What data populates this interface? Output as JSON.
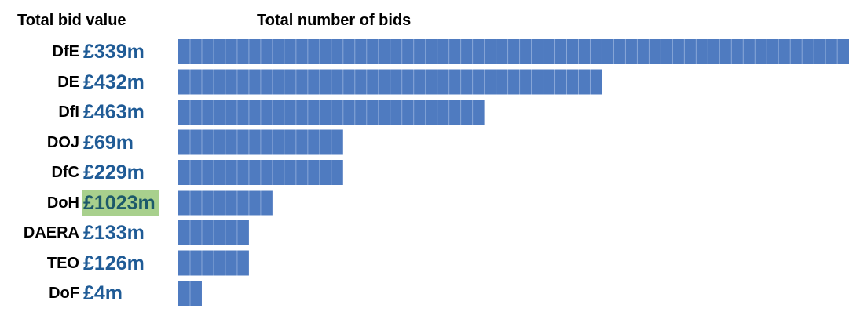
{
  "headers": {
    "value": "Total bid value",
    "count": "Total number of bids"
  },
  "colors": {
    "bar": "#4f7bc0",
    "bar_divider": "#8aa8d8",
    "value_text": "#1f5b96",
    "highlight_bg": "#a8d08d",
    "highlight_text": "#1d5a6a"
  },
  "chart_data": {
    "type": "bar",
    "orientation": "horizontal",
    "columns": [
      "Total bid value",
      "Total number of bids"
    ],
    "categories": [
      "DfE",
      "DE",
      "DfI",
      "DOJ",
      "DfC",
      "DoH",
      "DAERA",
      "TEO",
      "DoF"
    ],
    "bid_values": [
      "£339m",
      "£432m",
      "£463m",
      "£69m",
      "£229m",
      "£1023m",
      "£133m",
      "£126m",
      "£4m"
    ],
    "values": [
      57,
      36,
      26,
      14,
      14,
      8,
      6,
      6,
      2
    ],
    "highlighted": "DoH",
    "xlim": [
      0,
      57
    ]
  }
}
